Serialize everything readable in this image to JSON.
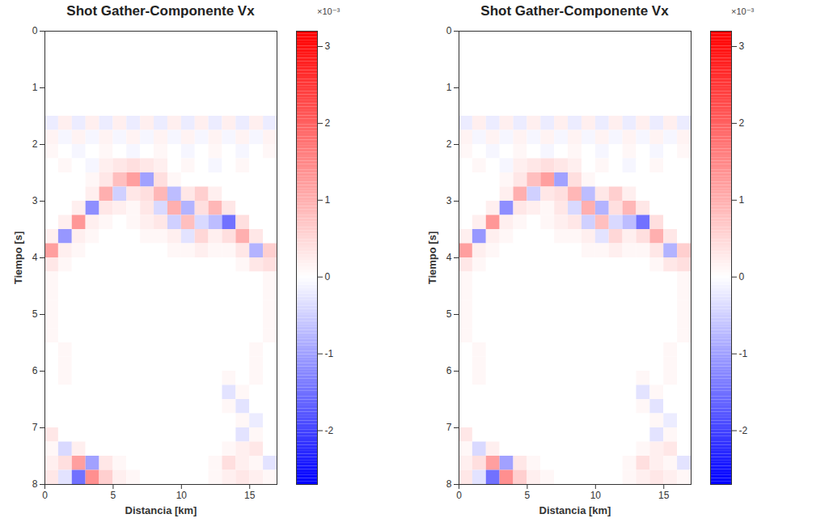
{
  "chart_data": [
    {
      "type": "heatmap",
      "title": "Shot Gather-Componente Vx",
      "xlabel": "Distancia [km]",
      "ylabel": "Tiempo [s]",
      "xlim": [
        0,
        17
      ],
      "ylim": [
        0,
        8
      ],
      "xticks": [
        0,
        5,
        10,
        15
      ],
      "yticks": [
        0,
        1,
        2,
        3,
        4,
        5,
        6,
        7,
        8
      ],
      "x": [
        0.5,
        1.5,
        2.5,
        3.5,
        4.5,
        5.5,
        6.5,
        7.5,
        8.5,
        9.5,
        10.5,
        11.5,
        12.5,
        13.5,
        14.5,
        15.5,
        16.5
      ],
      "y": [
        0.125,
        0.375,
        0.625,
        0.875,
        1.125,
        1.375,
        1.625,
        1.875,
        2.125,
        2.375,
        2.625,
        2.875,
        3.125,
        3.375,
        3.625,
        3.875,
        4.125,
        4.375,
        4.625,
        4.875,
        5.125,
        5.375,
        5.625,
        5.875,
        6.125,
        6.375,
        6.625,
        6.875,
        7.125,
        7.375,
        7.625,
        7.875
      ],
      "values": [
        [
          0,
          0,
          0,
          0,
          0,
          0,
          0,
          0,
          0,
          0,
          0,
          0,
          0,
          0,
          0,
          0,
          0
        ],
        [
          0,
          0,
          0,
          0,
          0,
          0,
          0,
          0,
          0,
          0,
          0,
          0,
          0,
          0,
          0,
          0,
          0
        ],
        [
          0,
          0,
          0,
          0,
          0,
          0,
          0,
          0,
          0,
          0,
          0,
          0,
          0,
          0,
          0,
          0,
          0
        ],
        [
          0,
          0,
          0,
          0,
          0,
          0,
          0,
          0,
          0,
          0,
          0,
          0,
          0,
          0,
          0,
          0,
          0
        ],
        [
          0,
          0,
          0,
          0,
          0,
          0,
          0,
          0,
          0,
          0,
          0,
          0,
          0,
          0,
          0,
          0,
          0
        ],
        [
          0,
          0,
          0,
          0,
          0,
          0,
          0,
          0,
          0,
          0,
          0,
          0,
          0,
          0,
          0,
          0,
          0
        ],
        [
          -0.2,
          0.2,
          -0.2,
          0.2,
          -0.2,
          0.2,
          -0.2,
          0.2,
          -0.2,
          0.2,
          -0.2,
          0.2,
          -0.2,
          0.2,
          -0.2,
          0.2,
          -0.2
        ],
        [
          0.15,
          -0.1,
          0.15,
          -0.1,
          0.15,
          -0.1,
          0.15,
          -0.1,
          0.15,
          -0.1,
          0.15,
          -0.1,
          0.15,
          -0.1,
          0.15,
          -0.1,
          0.15
        ],
        [
          0.1,
          0,
          -0.1,
          0,
          0.1,
          0,
          -0.1,
          0,
          0.1,
          0,
          -0.1,
          0,
          0.1,
          0,
          -0.1,
          0,
          0.1
        ],
        [
          0,
          0.1,
          0,
          -0.1,
          0.2,
          0.3,
          0.4,
          0.3,
          0.2,
          0,
          0.1,
          0,
          -0.1,
          0,
          0.1,
          0,
          0
        ],
        [
          0,
          0,
          0,
          0.1,
          0.3,
          0.8,
          1.2,
          -1.0,
          0.4,
          0.1,
          0,
          0,
          0,
          0,
          0,
          0,
          0
        ],
        [
          0,
          0,
          0,
          0.2,
          1.0,
          -0.5,
          0.3,
          0.4,
          0.9,
          -0.7,
          0.3,
          0.6,
          0.2,
          0,
          0,
          0,
          0
        ],
        [
          0,
          0,
          0.2,
          -1.2,
          0.3,
          0.2,
          0.1,
          0.3,
          -0.4,
          1.0,
          -0.8,
          0.4,
          0.9,
          0.3,
          0,
          0,
          0
        ],
        [
          0,
          0.2,
          1.3,
          0.2,
          0.1,
          0,
          0.1,
          0.2,
          0.3,
          -0.5,
          0.8,
          -0.4,
          -0.7,
          -1.5,
          0.4,
          0,
          0
        ],
        [
          0.2,
          -1.1,
          0.2,
          0.1,
          0,
          0,
          0,
          0.1,
          0.1,
          0.2,
          -0.3,
          0.5,
          0.2,
          0.4,
          1.0,
          0.3,
          0
        ],
        [
          1.2,
          0.2,
          0.1,
          0,
          0,
          0,
          0,
          0,
          0,
          0.1,
          0.1,
          0.2,
          0.1,
          0.1,
          0.3,
          -0.8,
          0.6
        ],
        [
          0.3,
          0.1,
          0,
          0,
          0,
          0,
          0,
          0,
          0,
          0,
          0,
          0,
          0,
          0,
          0.1,
          0.3,
          0.4
        ],
        [
          0.1,
          0,
          0,
          0,
          0,
          0,
          0,
          0,
          0,
          0,
          0,
          0,
          0,
          0,
          0,
          0,
          0.1
        ],
        [
          0.1,
          0,
          0,
          0,
          0,
          0,
          0,
          0,
          0,
          0,
          0,
          0,
          0,
          0,
          0,
          0,
          0.1
        ],
        [
          0.1,
          0,
          0,
          0,
          0,
          0,
          0,
          0,
          0,
          0,
          0,
          0,
          0,
          0,
          0,
          0,
          0.1
        ],
        [
          0.1,
          0,
          0,
          0,
          0,
          0,
          0,
          0,
          0,
          0,
          0,
          0,
          0,
          0,
          0,
          0,
          0.1
        ],
        [
          0.1,
          0,
          0,
          0,
          0,
          0,
          0,
          0,
          0,
          0,
          0,
          0,
          0,
          0,
          0,
          0,
          0.1
        ],
        [
          0,
          0.1,
          0,
          0,
          0,
          0,
          0,
          0,
          0,
          0,
          0,
          0,
          0,
          0,
          0,
          0.1,
          0
        ],
        [
          0,
          0.1,
          0,
          0,
          0,
          0,
          0,
          0,
          0,
          0,
          0,
          0,
          0,
          0,
          0,
          0.1,
          0
        ],
        [
          0,
          0.1,
          0,
          0,
          0,
          0,
          0,
          0,
          0,
          0,
          0,
          0,
          0,
          0.1,
          0,
          0.1,
          0
        ],
        [
          0,
          0,
          0,
          0,
          0,
          0,
          0,
          0,
          0,
          0,
          0,
          0,
          0,
          -0.3,
          0.1,
          0,
          0
        ],
        [
          0,
          0,
          0,
          0,
          0,
          0,
          0,
          0,
          0,
          0,
          0,
          0,
          0,
          0.1,
          -0.3,
          0,
          0
        ],
        [
          0,
          0,
          0,
          0,
          0,
          0,
          0,
          0,
          0,
          0,
          0,
          0,
          0,
          0,
          0.1,
          -0.2,
          0
        ],
        [
          0.3,
          0,
          0,
          0,
          0,
          0,
          0,
          0,
          0,
          0,
          0,
          0,
          0,
          0,
          -0.3,
          0.1,
          0
        ],
        [
          0.1,
          -0.4,
          0.2,
          0,
          0,
          0,
          0,
          0,
          0,
          0,
          0,
          0,
          0,
          0.1,
          0.2,
          0.3,
          0
        ],
        [
          0.2,
          0.4,
          1.2,
          -1.0,
          0.3,
          0.1,
          0,
          0,
          0,
          0,
          0,
          0,
          0.1,
          0.4,
          0.2,
          0.1,
          -0.3
        ],
        [
          0.3,
          -0.3,
          -1.5,
          1.4,
          0.6,
          0.2,
          0.1,
          0,
          0,
          0,
          0,
          0,
          0.1,
          0.2,
          0.3,
          0.2,
          0.1
        ]
      ],
      "color_range": [
        -2.7,
        3.2
      ],
      "color_ticks": [
        -2,
        -1,
        0,
        1,
        2,
        3
      ],
      "color_scale_label": "×10⁻³"
    },
    {
      "type": "heatmap",
      "title": "Shot Gather-Componente Vx",
      "xlabel": "Distancia [km]",
      "ylabel": "Tiempo [s]",
      "xlim": [
        0,
        17
      ],
      "ylim": [
        0,
        8
      ],
      "xticks": [
        0,
        5,
        10,
        15
      ],
      "yticks": [
        0,
        1,
        2,
        3,
        4,
        5,
        6,
        7,
        8
      ],
      "x": [
        0.5,
        1.5,
        2.5,
        3.5,
        4.5,
        5.5,
        6.5,
        7.5,
        8.5,
        9.5,
        10.5,
        11.5,
        12.5,
        13.5,
        14.5,
        15.5,
        16.5
      ],
      "y": [
        0.125,
        0.375,
        0.625,
        0.875,
        1.125,
        1.375,
        1.625,
        1.875,
        2.125,
        2.375,
        2.625,
        2.875,
        3.125,
        3.375,
        3.625,
        3.875,
        4.125,
        4.375,
        4.625,
        4.875,
        5.125,
        5.375,
        5.625,
        5.875,
        6.125,
        6.375,
        6.625,
        6.875,
        7.125,
        7.375,
        7.625,
        7.875
      ],
      "values": [
        [
          0,
          0,
          0,
          0,
          0,
          0,
          0,
          0,
          0,
          0,
          0,
          0,
          0,
          0,
          0,
          0,
          0
        ],
        [
          0,
          0,
          0,
          0,
          0,
          0,
          0,
          0,
          0,
          0,
          0,
          0,
          0,
          0,
          0,
          0,
          0
        ],
        [
          0,
          0,
          0,
          0,
          0,
          0,
          0,
          0,
          0,
          0,
          0,
          0,
          0,
          0,
          0,
          0,
          0
        ],
        [
          0,
          0,
          0,
          0,
          0,
          0,
          0,
          0,
          0,
          0,
          0,
          0,
          0,
          0,
          0,
          0,
          0
        ],
        [
          0,
          0,
          0,
          0,
          0,
          0,
          0,
          0,
          0,
          0,
          0,
          0,
          0,
          0,
          0,
          0,
          0
        ],
        [
          0,
          0,
          0,
          0,
          0,
          0,
          0,
          0,
          0,
          0,
          0,
          0,
          0,
          0,
          0,
          0,
          0
        ],
        [
          -0.2,
          0.2,
          -0.2,
          0.2,
          -0.2,
          0.2,
          -0.2,
          0.2,
          -0.2,
          0.2,
          -0.2,
          0.2,
          -0.2,
          0.2,
          -0.2,
          0.2,
          -0.2
        ],
        [
          0.15,
          -0.1,
          0.15,
          -0.1,
          0.15,
          -0.1,
          0.15,
          -0.1,
          0.15,
          -0.1,
          0.15,
          -0.1,
          0.15,
          -0.1,
          0.15,
          -0.1,
          0.15
        ],
        [
          0.1,
          0,
          -0.1,
          0,
          0.1,
          0,
          -0.1,
          0,
          0.1,
          0,
          -0.1,
          0,
          0.1,
          0,
          -0.1,
          0,
          0.1
        ],
        [
          0,
          0.1,
          0,
          -0.1,
          0.2,
          0.3,
          0.4,
          0.3,
          0.2,
          0,
          0.1,
          0,
          -0.1,
          0,
          0.1,
          0,
          0
        ],
        [
          0,
          0,
          0,
          0.1,
          0.3,
          0.8,
          1.2,
          -1.0,
          0.4,
          0.1,
          0,
          0,
          0,
          0,
          0,
          0,
          0
        ],
        [
          0,
          0,
          0,
          0.2,
          1.0,
          -0.5,
          0.3,
          0.4,
          0.9,
          -0.7,
          0.3,
          0.6,
          0.2,
          0,
          0,
          0,
          0
        ],
        [
          0,
          0,
          0.2,
          -1.2,
          0.3,
          0.2,
          0.1,
          0.3,
          -0.4,
          1.0,
          -0.8,
          0.4,
          0.9,
          0.3,
          0,
          0,
          0
        ],
        [
          0,
          0.2,
          1.3,
          0.2,
          0.1,
          0,
          0.1,
          0.2,
          0.3,
          -0.5,
          0.8,
          -0.4,
          -0.7,
          -1.5,
          0.4,
          0,
          0
        ],
        [
          0.2,
          -1.1,
          0.2,
          0.1,
          0,
          0,
          0,
          0.1,
          0.1,
          0.2,
          -0.3,
          0.5,
          0.2,
          0.4,
          1.0,
          0.3,
          0
        ],
        [
          1.2,
          0.2,
          0.1,
          0,
          0,
          0,
          0,
          0,
          0,
          0.1,
          0.1,
          0.2,
          0.1,
          0.1,
          0.3,
          -0.8,
          0.6
        ],
        [
          0.3,
          0.1,
          0,
          0,
          0,
          0,
          0,
          0,
          0,
          0,
          0,
          0,
          0,
          0,
          0.1,
          0.3,
          0.4
        ],
        [
          0.1,
          0,
          0,
          0,
          0,
          0,
          0,
          0,
          0,
          0,
          0,
          0,
          0,
          0,
          0,
          0,
          0.1
        ],
        [
          0.1,
          0,
          0,
          0,
          0,
          0,
          0,
          0,
          0,
          0,
          0,
          0,
          0,
          0,
          0,
          0,
          0.1
        ],
        [
          0.1,
          0,
          0,
          0,
          0,
          0,
          0,
          0,
          0,
          0,
          0,
          0,
          0,
          0,
          0,
          0,
          0.1
        ],
        [
          0.1,
          0,
          0,
          0,
          0,
          0,
          0,
          0,
          0,
          0,
          0,
          0,
          0,
          0,
          0,
          0,
          0.1
        ],
        [
          0.1,
          0,
          0,
          0,
          0,
          0,
          0,
          0,
          0,
          0,
          0,
          0,
          0,
          0,
          0,
          0,
          0.1
        ],
        [
          0,
          0.1,
          0,
          0,
          0,
          0,
          0,
          0,
          0,
          0,
          0,
          0,
          0,
          0,
          0,
          0.1,
          0
        ],
        [
          0,
          0.1,
          0,
          0,
          0,
          0,
          0,
          0,
          0,
          0,
          0,
          0,
          0,
          0,
          0,
          0.1,
          0
        ],
        [
          0,
          0.1,
          0,
          0,
          0,
          0,
          0,
          0,
          0,
          0,
          0,
          0,
          0,
          0.1,
          0,
          0.1,
          0
        ],
        [
          0,
          0,
          0,
          0,
          0,
          0,
          0,
          0,
          0,
          0,
          0,
          0,
          0,
          -0.3,
          0.1,
          0,
          0
        ],
        [
          0,
          0,
          0,
          0,
          0,
          0,
          0,
          0,
          0,
          0,
          0,
          0,
          0,
          0.1,
          -0.3,
          0,
          0
        ],
        [
          0,
          0,
          0,
          0,
          0,
          0,
          0,
          0,
          0,
          0,
          0,
          0,
          0,
          0,
          0.1,
          -0.2,
          0
        ],
        [
          0.3,
          0,
          0,
          0,
          0,
          0,
          0,
          0,
          0,
          0,
          0,
          0,
          0,
          0,
          -0.3,
          0.1,
          0
        ],
        [
          0.1,
          -0.4,
          0.2,
          0,
          0,
          0,
          0,
          0,
          0,
          0,
          0,
          0,
          0,
          0.1,
          0.2,
          0.3,
          0
        ],
        [
          0.2,
          0.4,
          1.2,
          -1.0,
          0.3,
          0.1,
          0,
          0,
          0,
          0,
          0,
          0,
          0.1,
          0.4,
          0.2,
          0.1,
          -0.3
        ],
        [
          0.3,
          -0.3,
          -1.5,
          1.4,
          0.6,
          0.2,
          0.1,
          0,
          0,
          0,
          0,
          0,
          0.1,
          0.2,
          0.3,
          0.2,
          0.1
        ]
      ],
      "color_range": [
        -2.7,
        3.2
      ],
      "color_ticks": [
        -2,
        -1,
        0,
        1,
        2,
        3
      ],
      "color_scale_label": "×10⁻³"
    }
  ]
}
